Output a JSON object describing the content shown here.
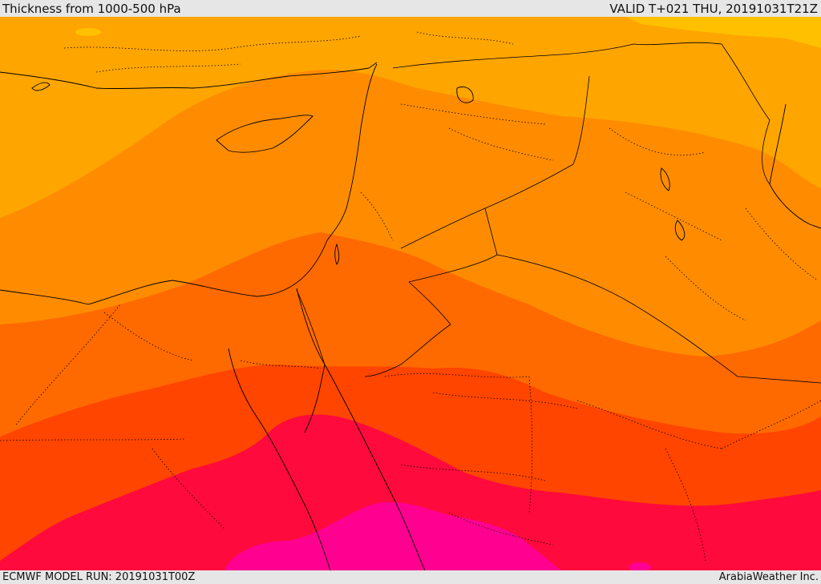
{
  "header": {
    "title": "Thickness from 1000-500 hPa",
    "valid": "VALID T+021 THU, 20191031T21Z"
  },
  "footer": {
    "model_run": "ECMWF MODEL RUN: 20191031T00Z",
    "credit": "ArabiaWeather Inc."
  },
  "map": {
    "palette": {
      "coolest": "#ffc000",
      "cool": "#ffa500",
      "mild": "#ff8c00",
      "warm": "#ff6a00",
      "warmer": "#ff4500",
      "hot": "#ff0a3c",
      "hottest": "#ff0090",
      "borders": "#000000"
    }
  }
}
